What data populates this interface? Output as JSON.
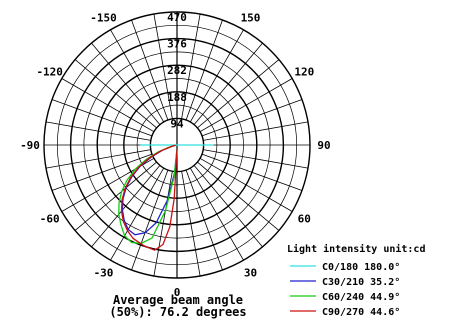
{
  "chart_data": {
    "type": "polar-line",
    "title_line1": "Average beam angle",
    "title_line2": "(50%): 76.2 degrees",
    "unit_label": "Light intensity unit:cd",
    "radial_ticks": [
      "94",
      "188",
      "282",
      "376",
      "470"
    ],
    "radial_max": 470,
    "angle_labels": [
      {
        "text": "0",
        "deg": 0
      },
      {
        "text": "30",
        "deg": 30
      },
      {
        "text": "60",
        "deg": 60
      },
      {
        "text": "90",
        "deg": 90
      },
      {
        "text": "120",
        "deg": 120
      },
      {
        "text": "150",
        "deg": 150
      },
      {
        "text": "-30",
        "deg": -30
      },
      {
        "text": "-60",
        "deg": -60
      },
      {
        "text": "-90",
        "deg": -90
      },
      {
        "text": "-120",
        "deg": -120
      },
      {
        "text": "-150",
        "deg": -150
      }
    ],
    "top_label": "470",
    "series": [
      {
        "name": "C0/180 180.0°",
        "color": "#33e0e0",
        "points": [
          [
            -90,
            130
          ],
          [
            90,
            130
          ]
        ]
      },
      {
        "name": "C30/210 35.2°",
        "color": "#2222cc",
        "points": [
          [
            0,
            15
          ],
          [
            -5,
            100
          ],
          [
            -10,
            200
          ],
          [
            -15,
            285
          ],
          [
            -20,
            330
          ],
          [
            -25,
            350
          ],
          [
            -30,
            345
          ],
          [
            -35,
            325
          ],
          [
            -40,
            300
          ],
          [
            -45,
            270
          ],
          [
            -50,
            235
          ],
          [
            -55,
            195
          ],
          [
            -60,
            150
          ],
          [
            -65,
            100
          ],
          [
            -70,
            55
          ],
          [
            -75,
            20
          ],
          [
            -80,
            5
          ]
        ]
      },
      {
        "name": "C60/240 44.9°",
        "color": "#11cc11",
        "points": [
          [
            0,
            15
          ],
          [
            -5,
            110
          ],
          [
            -10,
            235
          ],
          [
            -15,
            340
          ],
          [
            -20,
            370
          ],
          [
            -25,
            380
          ],
          [
            -30,
            370
          ],
          [
            -35,
            345
          ],
          [
            -40,
            320
          ],
          [
            -45,
            290
          ],
          [
            -50,
            255
          ],
          [
            -55,
            215
          ],
          [
            -60,
            170
          ],
          [
            -65,
            120
          ],
          [
            -70,
            70
          ],
          [
            -75,
            28
          ],
          [
            -80,
            6
          ]
        ]
      },
      {
        "name": "C90/270 44.6°",
        "color": "#cc1111",
        "points": [
          [
            0,
            15
          ],
          [
            -3,
            190
          ],
          [
            -5,
            290
          ],
          [
            -8,
            355
          ],
          [
            -12,
            380
          ],
          [
            -18,
            375
          ],
          [
            -25,
            365
          ],
          [
            -30,
            350
          ],
          [
            -35,
            330
          ],
          [
            -40,
            305
          ],
          [
            -45,
            275
          ],
          [
            -50,
            240
          ],
          [
            -55,
            200
          ],
          [
            -60,
            155
          ],
          [
            -65,
            108
          ],
          [
            -70,
            60
          ],
          [
            -75,
            22
          ],
          [
            -80,
            5
          ]
        ]
      }
    ]
  }
}
